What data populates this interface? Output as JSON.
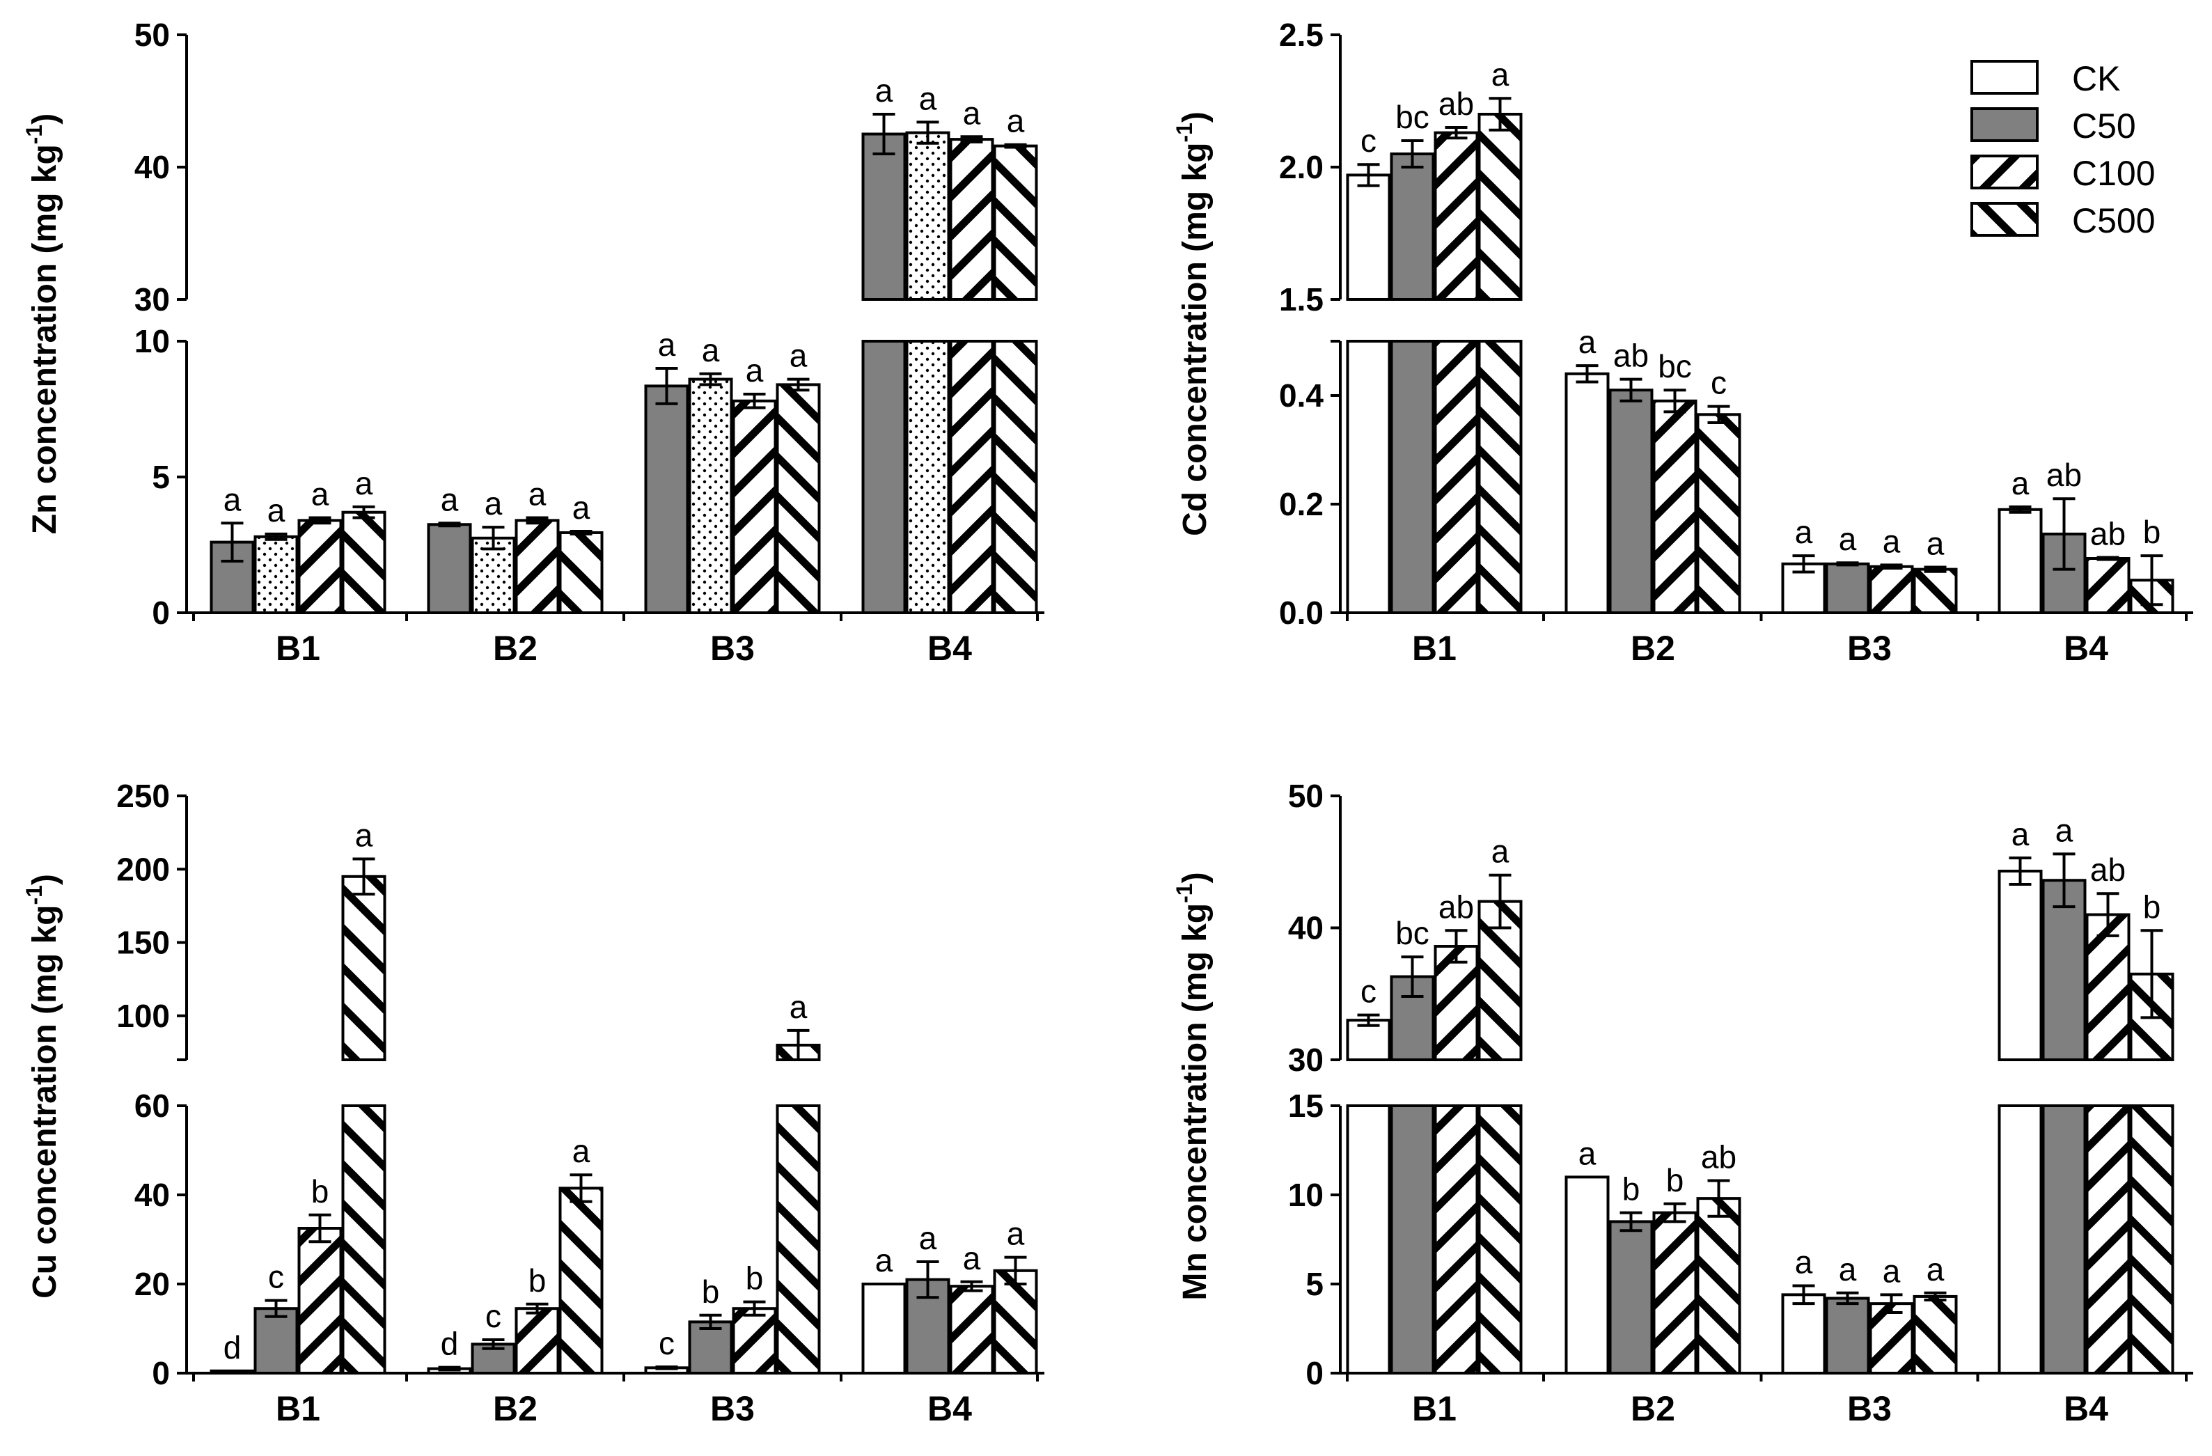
{
  "legend": {
    "items": [
      {
        "label": "CK",
        "pattern": "pat-white"
      },
      {
        "label": "C50",
        "pattern": "pat-gray"
      },
      {
        "label": "C100",
        "pattern": "pat-back"
      },
      {
        "label": "C500",
        "pattern": "pat-fwd"
      }
    ]
  },
  "chart_data": [
    {
      "type": "bar",
      "id": "zn",
      "ylabel": "Zn concentration (mg kg",
      "ylabel_sup": "-1",
      "categories": [
        "B1",
        "B2",
        "B3",
        "B4"
      ],
      "broken_axis": true,
      "lower_range": [
        0,
        10
      ],
      "upper_range": [
        30,
        50
      ],
      "lower_ticks": [
        0,
        5,
        10
      ],
      "upper_ticks": [
        30,
        40,
        50
      ],
      "series": [
        {
          "pattern": "pat-gray",
          "values": [
            2.6,
            3.25,
            8.35,
            42.5
          ],
          "errors": [
            0.7,
            0.05,
            0.65,
            1.5
          ],
          "letters": [
            "a",
            "a",
            "a",
            "a"
          ]
        },
        {
          "pattern": "pat-dots",
          "values": [
            2.8,
            2.75,
            8.6,
            42.6
          ],
          "errors": [
            0.1,
            0.4,
            0.2,
            0.8
          ],
          "letters": [
            "a",
            "a",
            "a",
            "a"
          ]
        },
        {
          "pattern": "pat-back",
          "values": [
            3.4,
            3.4,
            7.8,
            42.1
          ],
          "errors": [
            0.1,
            0.1,
            0.25,
            0.2
          ],
          "letters": [
            "a",
            "a",
            "a",
            "a"
          ]
        },
        {
          "pattern": "pat-fwd",
          "values": [
            3.7,
            2.95,
            8.4,
            41.6
          ],
          "errors": [
            0.2,
            0.05,
            0.2,
            0.1
          ],
          "letters": [
            "a",
            "a",
            "a",
            "a"
          ]
        }
      ]
    },
    {
      "type": "bar",
      "id": "cd",
      "ylabel": "Cd concentration (mg kg",
      "ylabel_sup": "-1",
      "categories": [
        "B1",
        "B2",
        "B3",
        "B4"
      ],
      "broken_axis": true,
      "lower_range": [
        0,
        0.5
      ],
      "upper_range": [
        1.5,
        2.5
      ],
      "lower_ticks": [
        0.0,
        0.2,
        0.4
      ],
      "upper_ticks": [
        1.5,
        2.0,
        2.5
      ],
      "tick_decimals": 1,
      "series": [
        {
          "name": "CK",
          "pattern": "pat-white",
          "values": [
            1.97,
            0.44,
            0.09,
            0.19
          ],
          "errors": [
            0.04,
            0.015,
            0.015,
            0.005
          ],
          "letters": [
            "c",
            "a",
            "a",
            "a"
          ]
        },
        {
          "name": "C50",
          "pattern": "pat-gray",
          "values": [
            2.05,
            0.41,
            0.09,
            0.145
          ],
          "errors": [
            0.05,
            0.02,
            0.002,
            0.065
          ],
          "letters": [
            "bc",
            "ab",
            "a",
            "ab"
          ]
        },
        {
          "name": "C100",
          "pattern": "pat-back",
          "values": [
            2.13,
            0.39,
            0.085,
            0.1
          ],
          "errors": [
            0.02,
            0.02,
            0.003,
            0.002
          ],
          "letters": [
            "ab",
            "bc",
            "a",
            "ab"
          ]
        },
        {
          "name": "C500",
          "pattern": "pat-fwd",
          "values": [
            2.2,
            0.365,
            0.08,
            0.06
          ],
          "errors": [
            0.06,
            0.015,
            0.004,
            0.045
          ],
          "letters": [
            "a",
            "c",
            "a",
            "b"
          ]
        }
      ]
    },
    {
      "type": "bar",
      "id": "cu",
      "ylabel": "Cu concentration (mg kg",
      "ylabel_sup": "-1",
      "categories": [
        "B1",
        "B2",
        "B3",
        "B4"
      ],
      "broken_axis": true,
      "lower_range": [
        0,
        60
      ],
      "upper_range": [
        70,
        250
      ],
      "lower_ticks": [
        0,
        20,
        40,
        60
      ],
      "upper_ticks": [
        100,
        150,
        200,
        250
      ],
      "series": [
        {
          "name": "CK",
          "pattern": "pat-white",
          "values": [
            0.5,
            1,
            1.2,
            20
          ],
          "errors": [
            0,
            0.3,
            0.2,
            0
          ],
          "letters": [
            "d",
            "d",
            "c",
            "a"
          ]
        },
        {
          "name": "C50",
          "pattern": "pat-gray",
          "values": [
            14.5,
            6.5,
            11.5,
            21
          ],
          "errors": [
            1.8,
            1,
            1.5,
            4
          ],
          "letters": [
            "c",
            "c",
            "b",
            "a"
          ]
        },
        {
          "name": "C100",
          "pattern": "pat-back",
          "values": [
            32.5,
            14.5,
            14.5,
            19.5
          ],
          "errors": [
            3,
            1,
            1.5,
            1
          ],
          "letters": [
            "b",
            "b",
            "b",
            "a"
          ]
        },
        {
          "name": "C500",
          "pattern": "pat-fwd",
          "values": [
            195,
            41.5,
            80,
            23
          ],
          "errors": [
            12,
            3,
            10,
            3
          ],
          "letters": [
            "a",
            "a",
            "a",
            "a"
          ]
        }
      ]
    },
    {
      "type": "bar",
      "id": "mn",
      "ylabel": "Mn concentration (mg kg",
      "ylabel_sup": "-1",
      "categories": [
        "B1",
        "B2",
        "B3",
        "B4"
      ],
      "broken_axis": true,
      "lower_range": [
        0,
        15
      ],
      "upper_range": [
        30,
        50
      ],
      "lower_ticks": [
        0,
        5,
        10,
        15
      ],
      "upper_ticks": [
        30,
        40,
        50
      ],
      "series": [
        {
          "name": "CK",
          "pattern": "pat-white",
          "values": [
            33,
            11,
            4.4,
            44.3
          ],
          "errors": [
            0.4,
            0,
            0.5,
            1
          ],
          "letters": [
            "c",
            "a",
            "a",
            "a"
          ]
        },
        {
          "name": "C50",
          "pattern": "pat-gray",
          "values": [
            36.3,
            8.5,
            4.2,
            43.6
          ],
          "errors": [
            1.5,
            0.5,
            0.3,
            2
          ],
          "letters": [
            "bc",
            "b",
            "a",
            "a"
          ]
        },
        {
          "name": "C100",
          "pattern": "pat-back",
          "values": [
            38.6,
            9,
            3.9,
            41
          ],
          "errors": [
            1.2,
            0.5,
            0.5,
            1.6
          ],
          "letters": [
            "ab",
            "b",
            "a",
            "ab"
          ]
        },
        {
          "name": "C500",
          "pattern": "pat-fwd",
          "values": [
            42,
            9.8,
            4.3,
            36.5
          ],
          "errors": [
            2,
            1,
            0.2,
            3.3
          ],
          "letters": [
            "a",
            "ab",
            "a",
            "b"
          ]
        }
      ]
    }
  ]
}
